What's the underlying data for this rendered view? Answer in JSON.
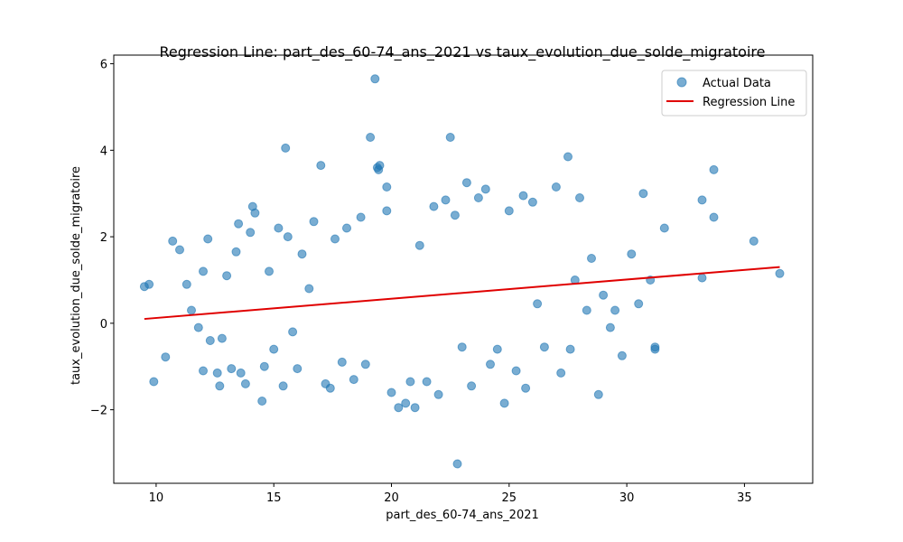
{
  "chart_data": {
    "type": "scatter",
    "title": "Regression Line: part_des_60-74_ans_2021 vs taux_evolution_due_solde_migratoire",
    "xlabel": "part_des_60-74_ans_2021",
    "ylabel": "taux_evolution_due_solde_migratoire",
    "xlim": [
      8.2,
      37.9
    ],
    "ylim": [
      -3.7,
      6.2
    ],
    "xticks": [
      10,
      15,
      20,
      25,
      30,
      35
    ],
    "yticks": [
      -2,
      0,
      2,
      4,
      6
    ],
    "ytick_labels": [
      "−2",
      "0",
      "2",
      "4",
      "6"
    ],
    "legend": {
      "placement": "top-right",
      "entries": [
        "Actual Data",
        "Regression Line"
      ]
    },
    "colors": {
      "points": "#1f77b4",
      "regression": "#e00000"
    },
    "series": [
      {
        "name": "Actual Data",
        "points": [
          [
            9.5,
            0.85
          ],
          [
            9.7,
            0.9
          ],
          [
            9.9,
            -1.35
          ],
          [
            10.4,
            -0.78
          ],
          [
            10.7,
            1.9
          ],
          [
            11.0,
            1.7
          ],
          [
            11.3,
            0.9
          ],
          [
            11.5,
            0.3
          ],
          [
            11.8,
            -0.1
          ],
          [
            12.0,
            1.2
          ],
          [
            12.0,
            -1.1
          ],
          [
            12.2,
            1.95
          ],
          [
            12.3,
            -0.4
          ],
          [
            12.6,
            -1.15
          ],
          [
            12.7,
            -1.45
          ],
          [
            12.8,
            -0.35
          ],
          [
            13.0,
            1.1
          ],
          [
            13.2,
            -1.05
          ],
          [
            13.4,
            1.65
          ],
          [
            13.5,
            2.3
          ],
          [
            13.6,
            -1.15
          ],
          [
            13.8,
            -1.4
          ],
          [
            14.0,
            2.1
          ],
          [
            14.1,
            2.7
          ],
          [
            14.2,
            2.55
          ],
          [
            14.5,
            -1.8
          ],
          [
            14.6,
            -1.0
          ],
          [
            14.8,
            1.2
          ],
          [
            15.0,
            -0.6
          ],
          [
            15.2,
            2.2
          ],
          [
            15.4,
            -1.45
          ],
          [
            15.5,
            4.05
          ],
          [
            15.6,
            2.0
          ],
          [
            15.8,
            -0.2
          ],
          [
            16.0,
            -1.05
          ],
          [
            16.2,
            1.6
          ],
          [
            16.5,
            0.8
          ],
          [
            16.7,
            2.35
          ],
          [
            17.0,
            3.65
          ],
          [
            17.2,
            -1.4
          ],
          [
            17.4,
            -1.5
          ],
          [
            17.6,
            1.95
          ],
          [
            17.9,
            -0.9
          ],
          [
            18.1,
            2.2
          ],
          [
            18.4,
            -1.3
          ],
          [
            18.7,
            2.45
          ],
          [
            18.9,
            -0.95
          ],
          [
            19.1,
            4.3
          ],
          [
            19.3,
            5.65
          ],
          [
            19.4,
            3.6
          ],
          [
            19.45,
            3.55
          ],
          [
            19.5,
            3.65
          ],
          [
            19.8,
            3.15
          ],
          [
            19.8,
            2.6
          ],
          [
            20.0,
            -1.6
          ],
          [
            20.3,
            -1.95
          ],
          [
            20.6,
            -1.85
          ],
          [
            20.8,
            -1.35
          ],
          [
            21.0,
            -1.95
          ],
          [
            21.2,
            1.8
          ],
          [
            21.5,
            -1.35
          ],
          [
            21.8,
            2.7
          ],
          [
            22.0,
            -1.65
          ],
          [
            22.3,
            2.85
          ],
          [
            22.5,
            4.3
          ],
          [
            22.7,
            2.5
          ],
          [
            22.8,
            -3.25
          ],
          [
            23.0,
            -0.55
          ],
          [
            23.2,
            3.25
          ],
          [
            23.4,
            -1.45
          ],
          [
            23.7,
            2.9
          ],
          [
            24.0,
            3.1
          ],
          [
            24.2,
            -0.95
          ],
          [
            24.5,
            -0.6
          ],
          [
            24.8,
            -1.85
          ],
          [
            25.0,
            2.6
          ],
          [
            25.3,
            -1.1
          ],
          [
            25.6,
            2.95
          ],
          [
            25.7,
            -1.5
          ],
          [
            26.0,
            2.8
          ],
          [
            26.2,
            0.45
          ],
          [
            26.5,
            -0.55
          ],
          [
            27.0,
            3.15
          ],
          [
            27.2,
            -1.15
          ],
          [
            27.5,
            3.85
          ],
          [
            27.6,
            -0.6
          ],
          [
            27.8,
            1.0
          ],
          [
            28.0,
            2.9
          ],
          [
            28.3,
            0.3
          ],
          [
            28.5,
            1.5
          ],
          [
            28.8,
            -1.65
          ],
          [
            29.0,
            0.65
          ],
          [
            29.3,
            -0.1
          ],
          [
            29.5,
            0.3
          ],
          [
            29.8,
            -0.75
          ],
          [
            30.2,
            1.6
          ],
          [
            30.5,
            0.45
          ],
          [
            30.7,
            3.0
          ],
          [
            31.0,
            1.0
          ],
          [
            31.2,
            -0.55
          ],
          [
            31.2,
            -0.6
          ],
          [
            31.6,
            2.2
          ],
          [
            33.2,
            2.85
          ],
          [
            33.2,
            1.05
          ],
          [
            33.7,
            3.55
          ],
          [
            33.7,
            2.45
          ],
          [
            35.4,
            1.9
          ],
          [
            36.5,
            1.15
          ]
        ]
      },
      {
        "name": "Regression Line",
        "line": [
          [
            9.5,
            0.1
          ],
          [
            36.5,
            1.3
          ]
        ]
      }
    ]
  }
}
